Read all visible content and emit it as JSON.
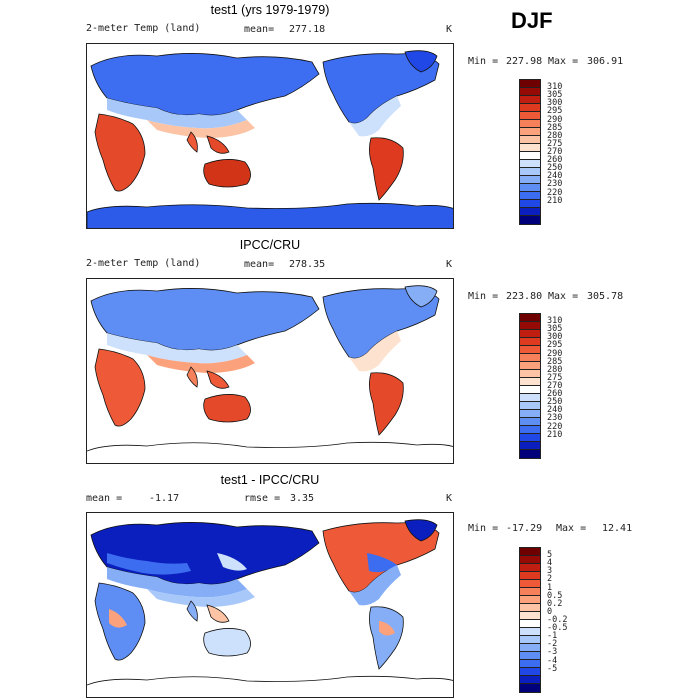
{
  "season": "DJF",
  "units": "K",
  "colors": {
    "temp_scale": [
      "#00007a",
      "#0a1fbe",
      "#1f48e6",
      "#3c6cf0",
      "#5e8ef4",
      "#85aef7",
      "#a9c8fa",
      "#cde0fc",
      "#ffffff",
      "#fde2cf",
      "#fcc4a4",
      "#fba27c",
      "#f6805a",
      "#ee5a37",
      "#de3a1f",
      "#c01e10",
      "#960a06",
      "#6e0000"
    ],
    "diff_scale": [
      "#00007a",
      "#0a1fbe",
      "#1f48e6",
      "#3c6cf0",
      "#5e8ef4",
      "#85aef7",
      "#a9c8fa",
      "#cde0fc",
      "#ffffff",
      "#fde2cf",
      "#fcc4a4",
      "#fba27c",
      "#f6805a",
      "#ee5a37",
      "#de3a1f",
      "#c01e10",
      "#960a06",
      "#6e0000"
    ]
  },
  "chart_data": [
    {
      "type": "heatmap",
      "title": "test1 (yrs 1979-1979)",
      "variable": "2-meter Temp (land)",
      "mean_label": "mean=",
      "mean": "277.18",
      "units": "K",
      "min_label": "Min =",
      "min": "227.98",
      "max_label": "Max =",
      "max": "306.91",
      "colorbar_levels": [
        "310",
        "305",
        "300",
        "295",
        "290",
        "285",
        "280",
        "275",
        "270",
        "260",
        "250",
        "240",
        "230",
        "220",
        "210"
      ]
    },
    {
      "type": "heatmap",
      "title": "IPCC/CRU",
      "variable": "2-meter Temp (land)",
      "mean_label": "mean=",
      "mean": "278.35",
      "units": "K",
      "min_label": "Min =",
      "min": "223.80",
      "max_label": "Max =",
      "max": "305.78",
      "colorbar_levels": [
        "310",
        "305",
        "300",
        "295",
        "290",
        "285",
        "280",
        "275",
        "270",
        "260",
        "250",
        "240",
        "230",
        "220",
        "210"
      ]
    },
    {
      "type": "heatmap",
      "title": "test1 - IPCC/CRU",
      "mean_label": "mean =",
      "mean": "-1.17",
      "rmse_label": "rmse =",
      "rmse": "3.35",
      "units": "K",
      "min_label": "Min =",
      "min": "-17.29",
      "max_label": "Max =",
      "max": "12.41",
      "colorbar_levels": [
        "5",
        "4",
        "3",
        "2",
        "1",
        "0.5",
        "0.2",
        "0",
        "-0.2",
        "-0.5",
        "-1",
        "-2",
        "-3",
        "-4",
        "-5"
      ]
    }
  ]
}
